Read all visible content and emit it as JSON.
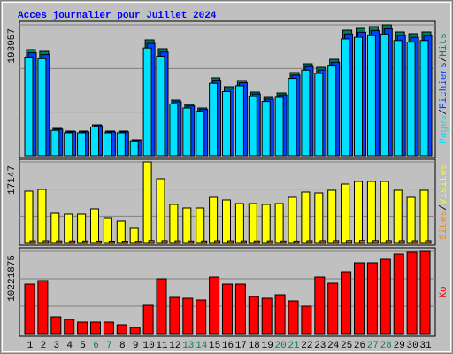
{
  "chart_data": [
    {
      "type": "bar",
      "title": "Acces journalier pour Juillet 2024",
      "legend_separator": "/",
      "ylim": [
        0,
        193957
      ],
      "yticks": [
        193957
      ],
      "series": [
        {
          "name": "Hits",
          "color": "#00805c",
          "values": [
            157260,
            154640,
            40625,
            36695,
            36695,
            45868,
            36695,
            36695,
            23590,
            171676,
            158571,
            82562,
            76009,
            70767,
            115324,
            102219,
            111393,
            94356,
            86493,
            93045,
            123186,
            136291,
            131050,
            142845,
            186091,
            188712,
            191333,
            193957,
            183468,
            180848,
            183468
          ]
        },
        {
          "name": "Fichiers",
          "color": "#0040ff",
          "values": [
            152540,
            149900,
            39410,
            35590,
            35590,
            44490,
            35590,
            35590,
            22880,
            166530,
            153810,
            80090,
            73730,
            68640,
            111860,
            99150,
            108050,
            91530,
            83900,
            90250,
            119490,
            132200,
            127120,
            138560,
            180510,
            183050,
            185590,
            188140,
            177960,
            175420,
            177960
          ]
        },
        {
          "name": "Pages",
          "color": "#00e0ff",
          "values": [
            146250,
            143720,
            37780,
            34130,
            34130,
            42660,
            34130,
            34130,
            21940,
            159660,
            147470,
            76780,
            70690,
            65810,
            107250,
            95060,
            103600,
            87750,
            80440,
            86530,
            114560,
            126750,
            121880,
            132850,
            173060,
            175500,
            177940,
            180380,
            170620,
            168190,
            170620
          ]
        }
      ]
    },
    {
      "type": "bar",
      "ylim": [
        0,
        17147
      ],
      "yticks": [
        17147
      ],
      "series": [
        {
          "name": "Visites",
          "color": "#ffff00",
          "values": [
            10998,
            11370,
            6338,
            6151,
            6151,
            7270,
            5406,
            4660,
            3169,
            17147,
            13607,
            8202,
            7456,
            7456,
            9693,
            9134,
            8388,
            8388,
            8202,
            8388,
            9693,
            10811,
            10625,
            11184,
            12489,
            13048,
            13048,
            13048,
            11184,
            9693,
            11184
          ]
        },
        {
          "name": "Sites",
          "color": "#ff8000",
          "values": [
            540,
            560,
            520,
            510,
            500,
            480,
            470,
            460,
            430,
            600,
            580,
            540,
            500,
            510,
            550,
            540,
            530,
            520,
            530,
            500,
            490,
            560,
            570,
            580,
            600,
            610,
            590,
            580,
            570,
            560,
            570
          ]
        }
      ]
    },
    {
      "type": "bar",
      "ylim": [
        0,
        10221875
      ],
      "yticks": [
        10221875
      ],
      "categories": [
        "1",
        "2",
        "3",
        "4",
        "5",
        "6",
        "7",
        "8",
        "9",
        "10",
        "11",
        "12",
        "13",
        "14",
        "15",
        "16",
        "17",
        "18",
        "19",
        "20",
        "21",
        "22",
        "23",
        "24",
        "25",
        "26",
        "27",
        "28",
        "29",
        "30",
        "31"
      ],
      "highlight_categories": [
        "6",
        "7",
        "13",
        "14",
        "20",
        "21",
        "27",
        "28"
      ],
      "highlight_color": "#00805c",
      "label_color": "#000000",
      "series": [
        {
          "name": "Ko",
          "color": "#ff0000",
          "values": [
            6155128,
            6594780,
            2088347,
            1758608,
            1428869,
            1428869,
            1428869,
            1099130,
            769391,
            3517216,
            6814606,
            4506433,
            4396520,
            4176694,
            7034432,
            6155128,
            6155128,
            4616346,
            4396520,
            4836172,
            4066781,
            3407303,
            7034432,
            6265041,
            7693910,
            8793040,
            8793040,
            9232692,
            9892170,
            10111962,
            10221875
          ]
        }
      ]
    }
  ]
}
